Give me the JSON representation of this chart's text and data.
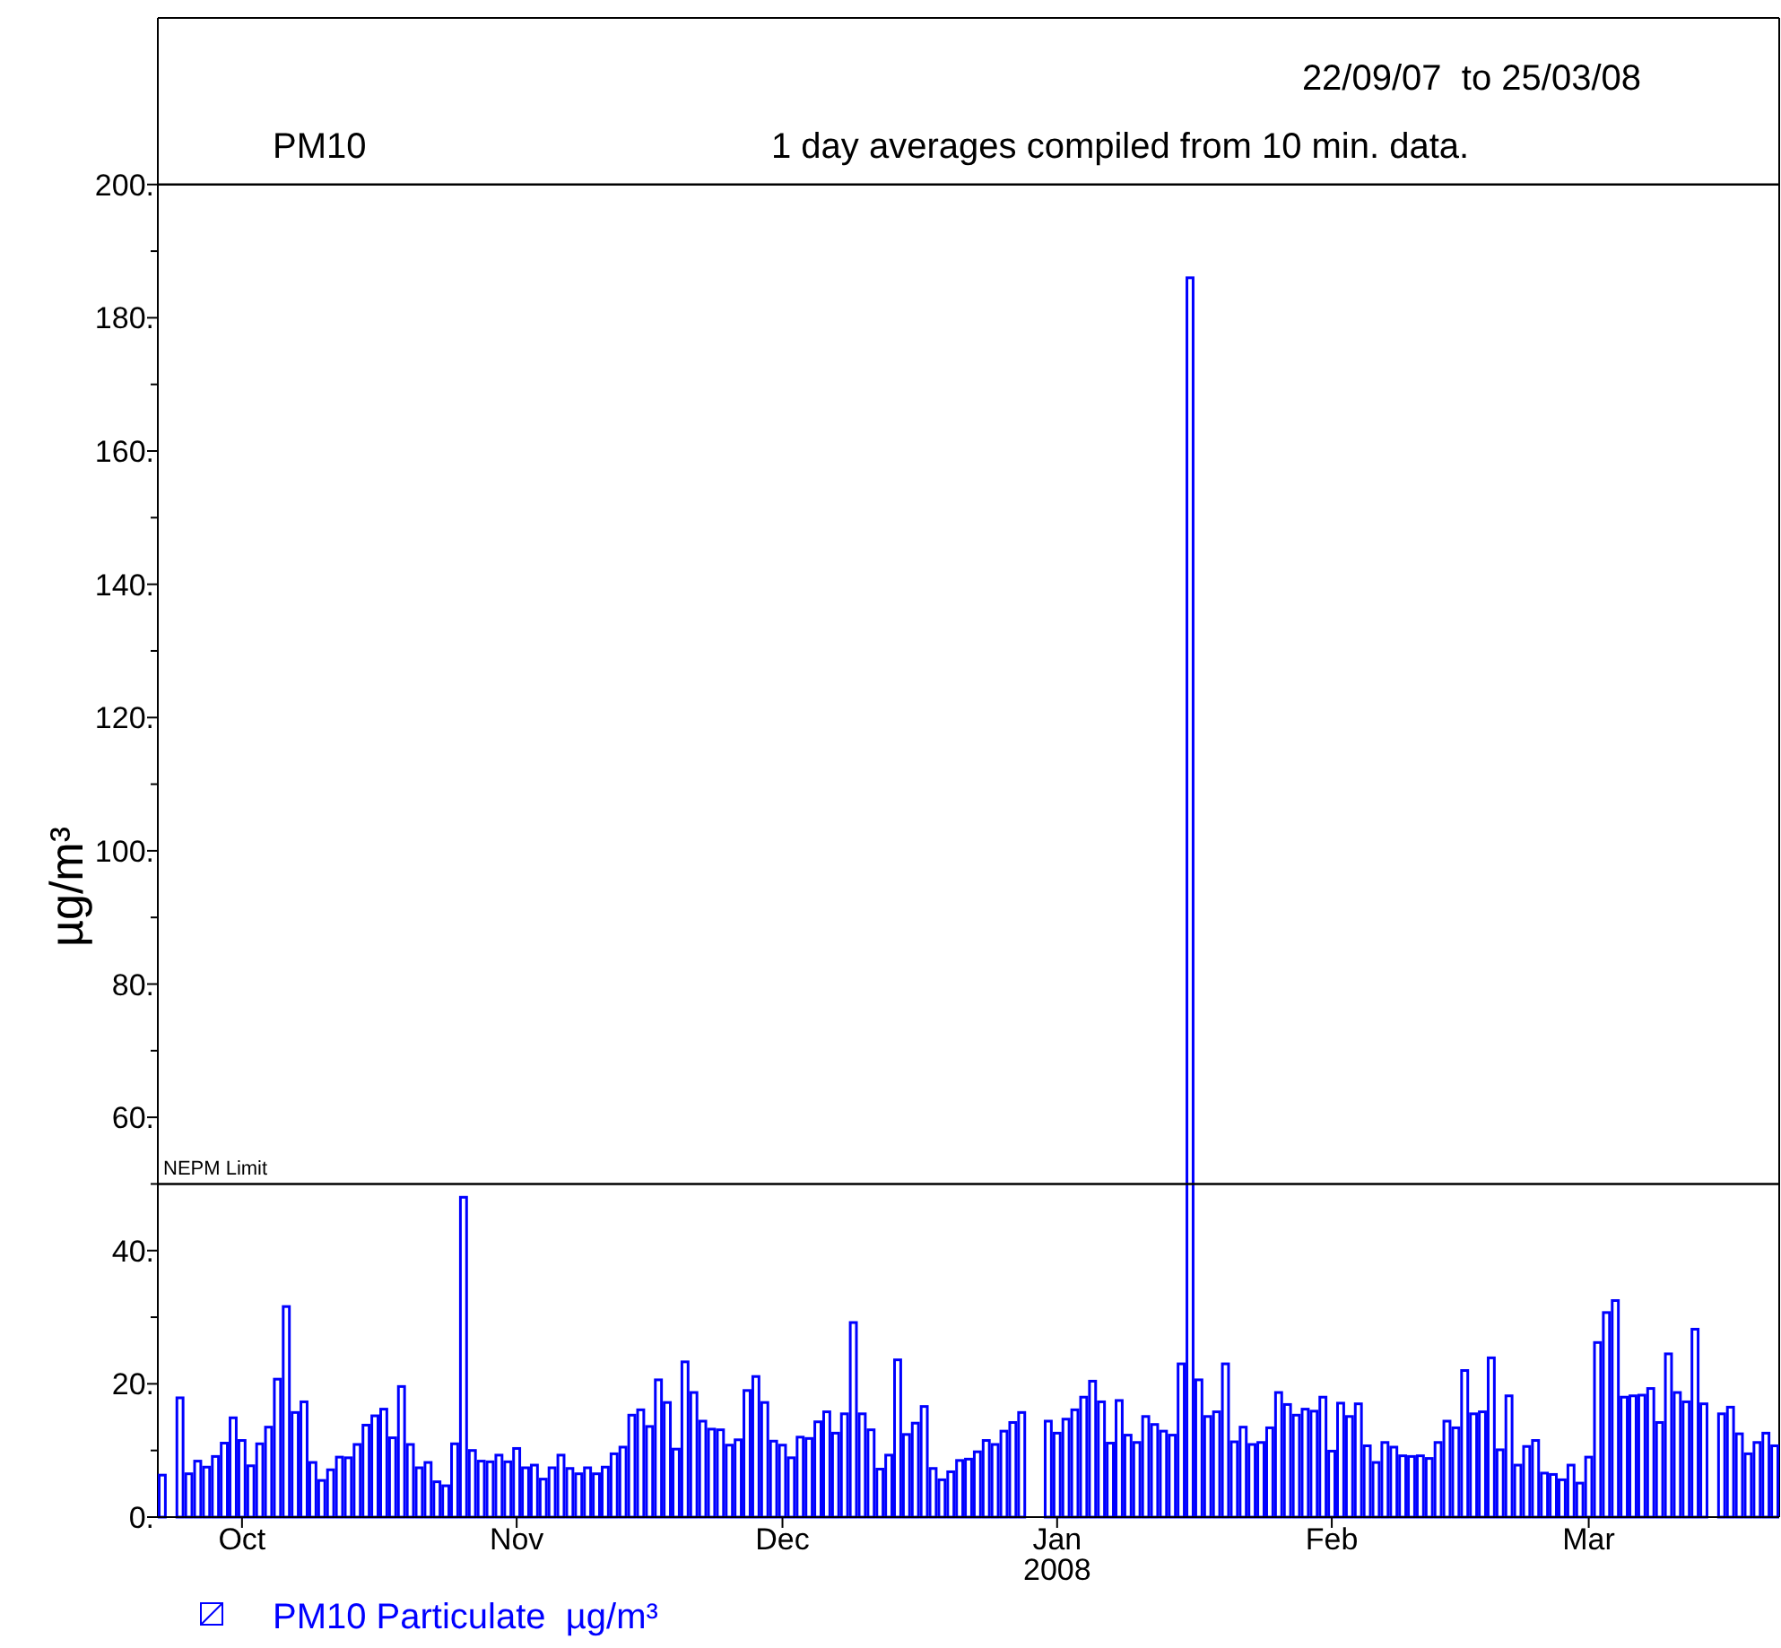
{
  "chart_data": {
    "type": "bar",
    "title": "PM10",
    "subtitle": "1 day averages compiled from 10 min. data.",
    "ylabel": "µg/m³",
    "annotations": [
      "22/09/07  to 25/03/08"
    ],
    "legend": "bottom",
    "xlim": [
      "2007-09-22",
      "2008-03-23"
    ],
    "xticks": [
      {
        "value": "2007-10-01",
        "label": "Oct"
      },
      {
        "value": "2007-11-01",
        "label": "Nov"
      },
      {
        "value": "2007-12-01",
        "label": "Dec"
      },
      {
        "value": "2008-01-01",
        "label": "Jan\n2008"
      },
      {
        "value": "2008-02-01",
        "label": "Feb"
      },
      {
        "value": "2008-03-01",
        "label": "Mar"
      }
    ],
    "ylim": [
      0,
      225
    ],
    "yticks": [
      {
        "value": 0,
        "label": "0."
      },
      {
        "value": 10,
        "label": null
      },
      {
        "value": 20,
        "label": "20."
      },
      {
        "value": 30,
        "label": null
      },
      {
        "value": 40,
        "label": "40."
      },
      {
        "value": 50,
        "label": null
      },
      {
        "value": 60,
        "label": "60."
      },
      {
        "value": 70,
        "label": null
      },
      {
        "value": 80,
        "label": "80."
      },
      {
        "value": 90,
        "label": null
      },
      {
        "value": 100,
        "label": "100."
      },
      {
        "value": 110,
        "label": null
      },
      {
        "value": 120,
        "label": "120."
      },
      {
        "value": 130,
        "label": null
      },
      {
        "value": 140,
        "label": "140."
      },
      {
        "value": 150,
        "label": null
      },
      {
        "value": 160,
        "label": "160."
      },
      {
        "value": 170,
        "label": null
      },
      {
        "value": 180,
        "label": "180."
      },
      {
        "value": 190,
        "label": null
      },
      {
        "value": 200,
        "label": "200."
      }
    ],
    "ref_lines": [
      {
        "axis": "y",
        "value": 50,
        "label": "NEPM Limit",
        "color": "#000000"
      },
      {
        "axis": "y",
        "value": 200,
        "color": "#000000"
      }
    ],
    "x": [
      "2007-09-22",
      "2007-09-23",
      "2007-09-24",
      "2007-09-25",
      "2007-09-26",
      "2007-09-27",
      "2007-09-28",
      "2007-09-29",
      "2007-09-30",
      "2007-10-01",
      "2007-10-02",
      "2007-10-03",
      "2007-10-04",
      "2007-10-05",
      "2007-10-06",
      "2007-10-07",
      "2007-10-08",
      "2007-10-09",
      "2007-10-10",
      "2007-10-11",
      "2007-10-12",
      "2007-10-13",
      "2007-10-14",
      "2007-10-15",
      "2007-10-16",
      "2007-10-17",
      "2007-10-18",
      "2007-10-19",
      "2007-10-20",
      "2007-10-21",
      "2007-10-22",
      "2007-10-23",
      "2007-10-24",
      "2007-10-25",
      "2007-10-26",
      "2007-10-27",
      "2007-10-28",
      "2007-10-29",
      "2007-10-30",
      "2007-10-31",
      "2007-11-01",
      "2007-11-02",
      "2007-11-03",
      "2007-11-04",
      "2007-11-05",
      "2007-11-06",
      "2007-11-07",
      "2007-11-08",
      "2007-11-09",
      "2007-11-10",
      "2007-11-11",
      "2007-11-12",
      "2007-11-13",
      "2007-11-14",
      "2007-11-15",
      "2007-11-16",
      "2007-11-17",
      "2007-11-18",
      "2007-11-19",
      "2007-11-20",
      "2007-11-21",
      "2007-11-22",
      "2007-11-23",
      "2007-11-24",
      "2007-11-25",
      "2007-11-26",
      "2007-11-27",
      "2007-11-28",
      "2007-11-29",
      "2007-11-30",
      "2007-12-01",
      "2007-12-02",
      "2007-12-03",
      "2007-12-04",
      "2007-12-05",
      "2007-12-06",
      "2007-12-07",
      "2007-12-08",
      "2007-12-09",
      "2007-12-10",
      "2007-12-11",
      "2007-12-12",
      "2007-12-13",
      "2007-12-14",
      "2007-12-15",
      "2007-12-16",
      "2007-12-17",
      "2007-12-18",
      "2007-12-19",
      "2007-12-20",
      "2007-12-21",
      "2007-12-22",
      "2007-12-23",
      "2007-12-24",
      "2007-12-25",
      "2007-12-26",
      "2007-12-27",
      "2007-12-28",
      "2007-12-29",
      "2007-12-30",
      "2007-12-31",
      "2008-01-01",
      "2008-01-02",
      "2008-01-03",
      "2008-01-04",
      "2008-01-05",
      "2008-01-06",
      "2008-01-07",
      "2008-01-08",
      "2008-01-09",
      "2008-01-10",
      "2008-01-11",
      "2008-01-12",
      "2008-01-13",
      "2008-01-14",
      "2008-01-15",
      "2008-01-16",
      "2008-01-17",
      "2008-01-18",
      "2008-01-19",
      "2008-01-20",
      "2008-01-21",
      "2008-01-22",
      "2008-01-23",
      "2008-01-24",
      "2008-01-25",
      "2008-01-26",
      "2008-01-27",
      "2008-01-28",
      "2008-01-29",
      "2008-01-30",
      "2008-01-31",
      "2008-02-01",
      "2008-02-02",
      "2008-02-03",
      "2008-02-04",
      "2008-02-05",
      "2008-02-06",
      "2008-02-07",
      "2008-02-08",
      "2008-02-09",
      "2008-02-10",
      "2008-02-11",
      "2008-02-12",
      "2008-02-13",
      "2008-02-14",
      "2008-02-15",
      "2008-02-16",
      "2008-02-17",
      "2008-02-18",
      "2008-02-19",
      "2008-02-20",
      "2008-02-21",
      "2008-02-22",
      "2008-02-23",
      "2008-02-24",
      "2008-02-25",
      "2008-02-26",
      "2008-02-27",
      "2008-02-28",
      "2008-02-29",
      "2008-03-01",
      "2008-03-02",
      "2008-03-03",
      "2008-03-04",
      "2008-03-05",
      "2008-03-06",
      "2008-03-07",
      "2008-03-08",
      "2008-03-09",
      "2008-03-10",
      "2008-03-11",
      "2008-03-12",
      "2008-03-13",
      "2008-03-14",
      "2008-03-15",
      "2008-03-16",
      "2008-03-17",
      "2008-03-18",
      "2008-03-19",
      "2008-03-20",
      "2008-03-21",
      "2008-03-22"
    ],
    "series": [
      {
        "name": "PM10 Particulate  µg/m³",
        "color": "#0000ff",
        "values": [
          6.3,
          null,
          17.9,
          6.5,
          8.4,
          7.5,
          9.1,
          11.1,
          14.9,
          11.5,
          7.7,
          11.0,
          13.5,
          20.7,
          31.6,
          15.7,
          17.3,
          8.2,
          5.5,
          7.1,
          9.0,
          8.9,
          10.9,
          13.8,
          15.2,
          16.2,
          11.9,
          19.6,
          10.9,
          7.4,
          8.2,
          5.3,
          4.7,
          11.0,
          48.0,
          10.0,
          8.4,
          8.3,
          9.3,
          8.3,
          10.3,
          7.4,
          7.8,
          5.7,
          7.4,
          9.3,
          7.3,
          6.5,
          7.4,
          6.5,
          7.5,
          9.5,
          10.5,
          15.3,
          16.1,
          13.6,
          20.6,
          17.2,
          10.2,
          23.3,
          18.7,
          14.4,
          13.2,
          13.1,
          10.8,
          11.6,
          19.0,
          21.1,
          17.2,
          11.4,
          10.8,
          8.9,
          12.0,
          11.8,
          14.3,
          15.8,
          12.6,
          15.5,
          29.2,
          15.5,
          13.1,
          7.2,
          9.3,
          23.6,
          12.4,
          14.1,
          16.6,
          7.3,
          5.6,
          6.8,
          8.5,
          8.7,
          9.8,
          11.5,
          10.9,
          12.9,
          14.2,
          15.7,
          null,
          null,
          14.4,
          12.6,
          14.7,
          16.1,
          18.0,
          20.4,
          17.3,
          11.1,
          17.5,
          12.3,
          11.2,
          15.1,
          13.9,
          12.9,
          12.3,
          23.0,
          186,
          20.6,
          15.1,
          15.8,
          23.0,
          11.3,
          13.5,
          10.9,
          11.2,
          13.4,
          18.7,
          16.9,
          15.3,
          16.2,
          15.9,
          18.0,
          9.9,
          17.1,
          15.1,
          17.0,
          10.7,
          8.2,
          11.2,
          10.5,
          9.2,
          9.1,
          9.2,
          8.8,
          11.2,
          14.4,
          13.4,
          22.0,
          15.5,
          15.8,
          23.9,
          10.1,
          18.2,
          7.8,
          10.6,
          11.5,
          6.6,
          6.4,
          5.6,
          7.8,
          5.1,
          9.0,
          26.2,
          30.7,
          32.5,
          18.0,
          18.2,
          18.3,
          19.3,
          14.2,
          24.5,
          18.7,
          17.3,
          28.2,
          17.0,
          null,
          15.5,
          16.5,
          12.5,
          9.5,
          11.2,
          12.6,
          10.7
        ]
      }
    ]
  }
}
